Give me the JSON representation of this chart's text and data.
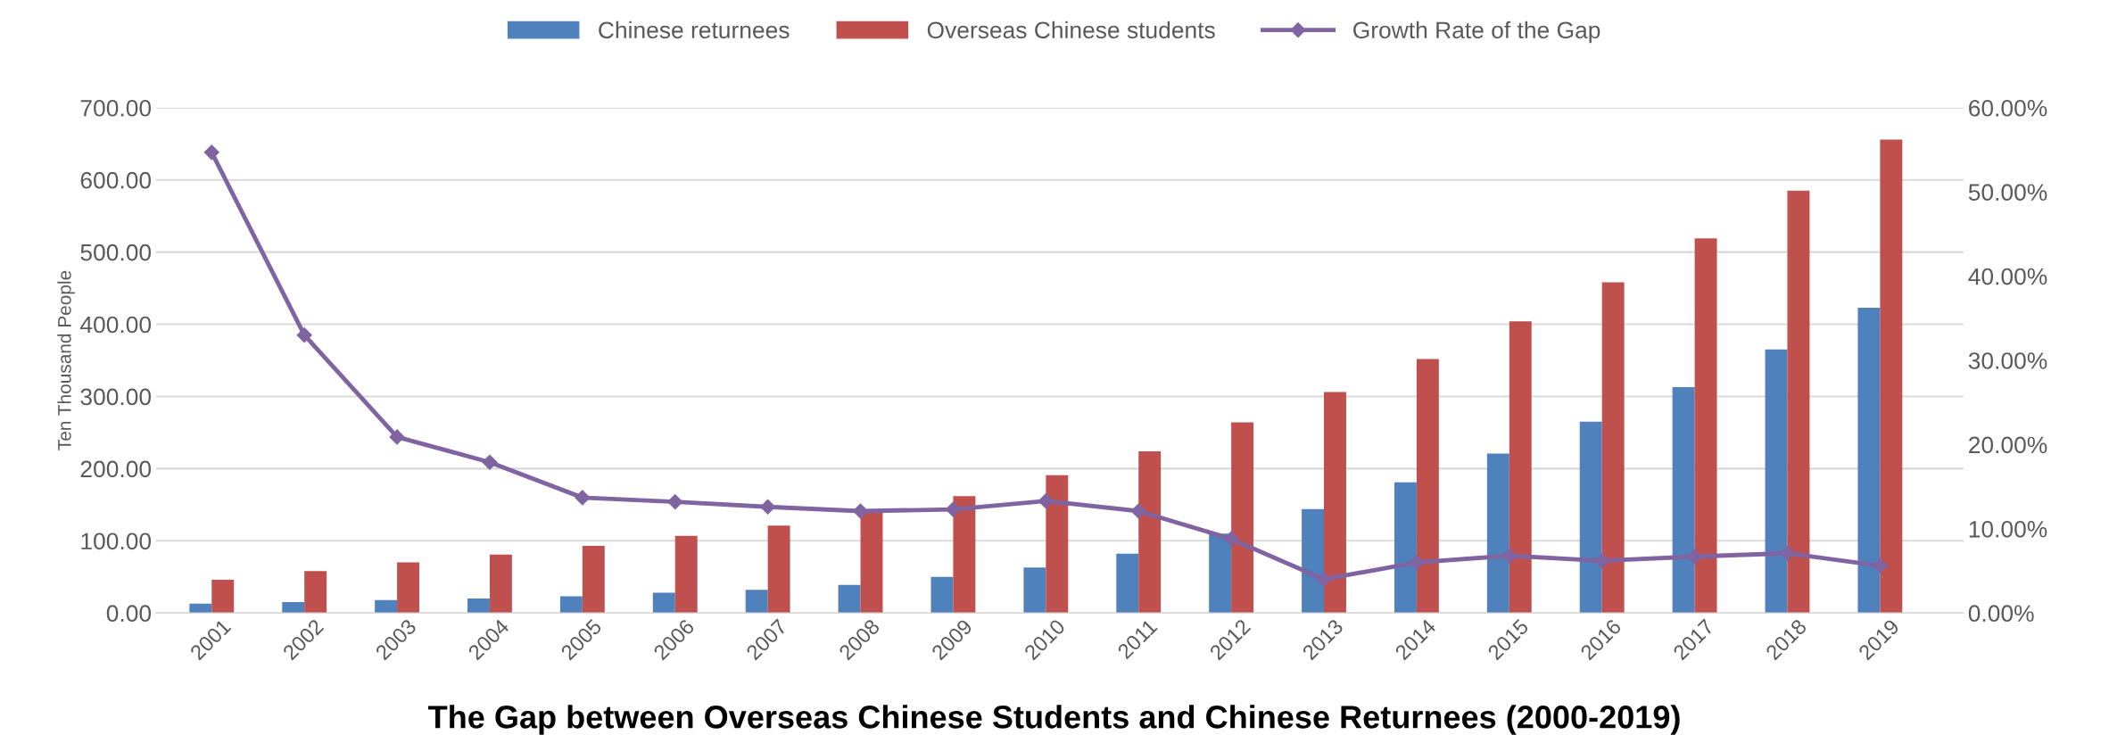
{
  "chart_data": {
    "type": "bar",
    "title": "The Gap between Overseas Chinese Students and Chinese Returnees (2000-2019)",
    "ylabel": "Ten Thousand People",
    "categories": [
      "2001",
      "2002",
      "2003",
      "2004",
      "2005",
      "2006",
      "2007",
      "2008",
      "2009",
      "2010",
      "2011",
      "2012",
      "2013",
      "2014",
      "2015",
      "2016",
      "2017",
      "2018",
      "2019"
    ],
    "series": [
      {
        "name": "Chinese returnees",
        "color": "#4f81bd",
        "values": [
          13,
          15,
          18,
          20,
          23,
          28,
          32,
          39,
          50,
          63,
          82,
          110,
          144,
          181,
          221,
          265,
          313,
          365,
          423
        ]
      },
      {
        "name": "Overseas Chinese students",
        "color": "#c0504d",
        "values": [
          46,
          58,
          70,
          81,
          93,
          107,
          121,
          140,
          162,
          191,
          224,
          264,
          306,
          352,
          404,
          458,
          519,
          585,
          656
        ]
      },
      {
        "name": "Growth Rate of the Gap",
        "color": "#8064a2",
        "type": "line",
        "axis": "y2",
        "marker": "diamond",
        "values": [
          54.7,
          33.0,
          20.9,
          17.9,
          13.7,
          13.2,
          12.6,
          12.1,
          12.3,
          13.3,
          12.1,
          8.8,
          4.0,
          6.0,
          6.8,
          6.2,
          6.7,
          7.1,
          5.6
        ]
      }
    ],
    "ylim": [
      0,
      700
    ],
    "yticks": [
      {
        "value": 0,
        "label": "0.00"
      },
      {
        "value": 100,
        "label": "100.00"
      },
      {
        "value": 200,
        "label": "200.00"
      },
      {
        "value": 300,
        "label": "300.00"
      },
      {
        "value": 400,
        "label": "400.00"
      },
      {
        "value": 500,
        "label": "500.00"
      },
      {
        "value": 600,
        "label": "600.00"
      },
      {
        "value": 700,
        "label": "700.00"
      }
    ],
    "y2lim": [
      0,
      60
    ],
    "y2ticks": [
      {
        "value": 0,
        "label": "0.00%"
      },
      {
        "value": 10,
        "label": "10.00%"
      },
      {
        "value": 20,
        "label": "20.00%"
      },
      {
        "value": 30,
        "label": "30.00%"
      },
      {
        "value": 40,
        "label": "40.00%"
      },
      {
        "value": 50,
        "label": "50.00%"
      },
      {
        "value": 60,
        "label": "60.00%"
      }
    ],
    "grid": "y",
    "legend": "top"
  }
}
